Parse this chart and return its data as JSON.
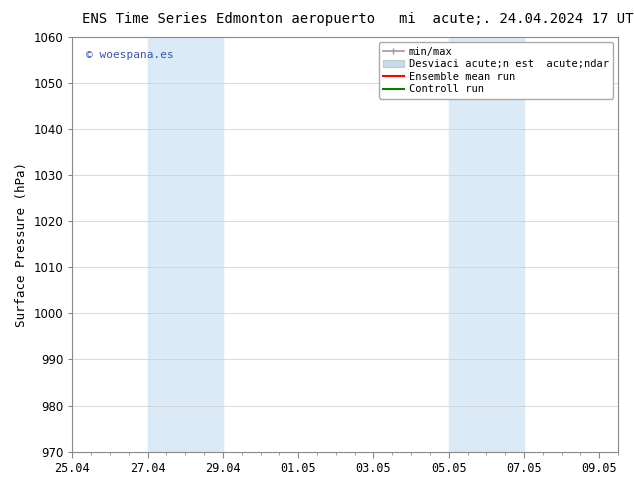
{
  "title_left": "ENS Time Series Edmonton aeropuerto",
  "title_right": "mi  acute;. 24.04.2024 17 UTC",
  "ylabel": "Surface Pressure (hPa)",
  "ylim": [
    970,
    1060
  ],
  "yticks": [
    970,
    980,
    990,
    1000,
    1010,
    1020,
    1030,
    1040,
    1050,
    1060
  ],
  "xtick_labels": [
    "25.04",
    "27.04",
    "29.04",
    "01.05",
    "03.05",
    "05.05",
    "07.05",
    "09.05"
  ],
  "xtick_positions": [
    0,
    2,
    4,
    6,
    8,
    10,
    12,
    14
  ],
  "x_total_days": 14,
  "shaded_bands": [
    {
      "x_start": 2,
      "x_end": 4
    },
    {
      "x_start": 10,
      "x_end": 12
    }
  ],
  "shaded_color": "#daeaf7",
  "watermark": "© woespana.es",
  "watermark_color": "#3355bb",
  "legend_labels": [
    "min/max",
    "Desviaci acute;n est  acute;ndar",
    "Ensemble mean run",
    "Controll run"
  ],
  "legend_colors": [
    "#999999",
    "#c8dce8",
    "red",
    "green"
  ],
  "background_color": "#ffffff",
  "grid_color": "#cccccc",
  "title_fontsize": 10,
  "label_fontsize": 9,
  "tick_fontsize": 8.5,
  "legend_fontsize": 7.5
}
